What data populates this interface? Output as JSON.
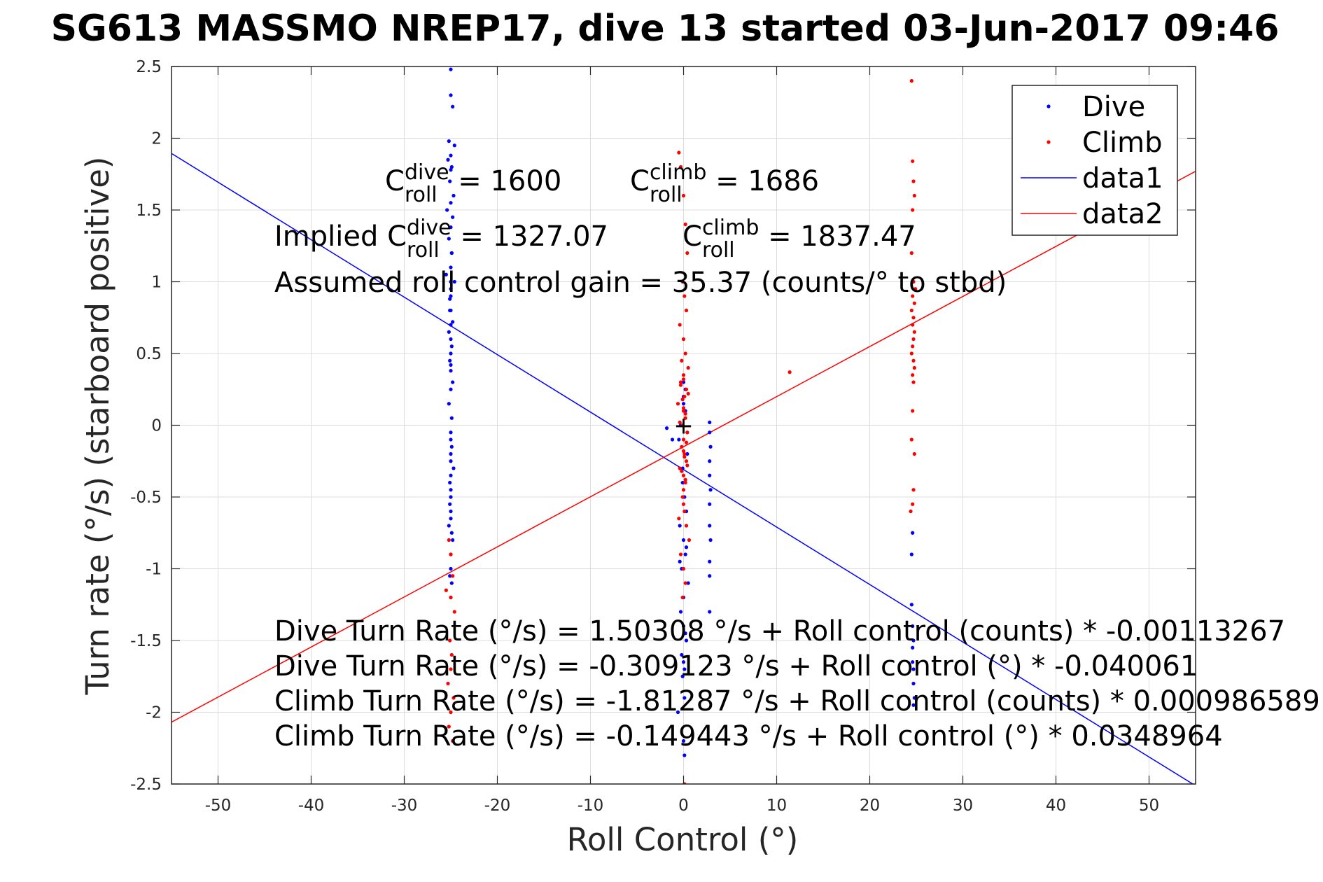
{
  "chart_data": {
    "type": "scatter",
    "title": "SG613 MASSMO NREP17, dive 13 started 03-Jun-2017 09:46",
    "xlabel": "Roll Control (°)",
    "ylabel": "Turn rate (°/s) (starboard positive)",
    "xlim": [
      -55,
      55
    ],
    "ylim": [
      -2.5,
      2.5
    ],
    "xticks": [
      -50,
      -40,
      -30,
      -20,
      -10,
      0,
      10,
      20,
      30,
      40,
      50
    ],
    "yticks": [
      -2.5,
      -2,
      -1.5,
      -1,
      -0.5,
      0,
      0.5,
      1,
      1.5,
      2,
      2.5
    ],
    "grid": true,
    "legend_position": "top-right",
    "series": [
      {
        "name": "Dive",
        "kind": "points",
        "color": "#0000ff",
        "x": [
          -25,
          -25,
          -24.8,
          -25.2,
          -24.6,
          -25,
          -25.3,
          -24.9,
          -25,
          -25.1,
          -24.7,
          -25,
          -25.4,
          -24.8,
          -25,
          -25.2,
          -24.9,
          -25,
          -25.5,
          -24.6,
          -25,
          -25.1,
          -25,
          -24.8,
          -25.2,
          -25,
          -24.9,
          -25,
          -25.1,
          -25,
          -24.8,
          -25,
          -25.2,
          -24.9,
          -25,
          -25,
          -24.7,
          -25.1,
          -25,
          -25,
          -25.2,
          -24.8,
          -25,
          -25,
          -25.1,
          -24.9,
          -25,
          -25,
          -24.9,
          -25,
          -25.1,
          -25,
          -25,
          -24.9,
          -25,
          -25,
          -25,
          -25.1,
          -25,
          -24.9,
          -25,
          -0.5,
          -0.3,
          0,
          0.2,
          0.4,
          -0.1,
          0.1,
          0.3,
          -0.4,
          0,
          0.2,
          -0.2,
          0.5,
          0,
          -0.3,
          0.3,
          0.1,
          -0.6,
          0,
          0.2,
          -0.1,
          0.4,
          0,
          -0.2,
          0.1,
          0.3,
          -0.4,
          0,
          0.2,
          0,
          -0.1,
          0,
          0.1,
          -1.8,
          -1.2,
          2.8,
          2.8,
          2.9,
          2.8,
          2.8,
          2.9,
          2.8,
          2.8,
          2.9,
          2.8,
          2.8,
          2.8,
          24.5,
          24.6,
          24.6,
          24.7,
          24.7,
          24.8,
          24.7,
          24.6,
          24.5,
          24.7,
          24.6
        ],
        "y": [
          2.48,
          2.3,
          2.22,
          1.98,
          1.95,
          1.88,
          1.85,
          1.8,
          1.78,
          1.7,
          1.6,
          1.55,
          1.5,
          1.45,
          1.38,
          1.3,
          1.2,
          1.1,
          1.05,
          1.0,
          0.95,
          0.88,
          0.8,
          0.72,
          0.65,
          0.6,
          0.55,
          0.5,
          0.45,
          0.38,
          0.3,
          0.25,
          0.15,
          0.05,
          -0.05,
          -0.2,
          -0.3,
          -0.4,
          -0.5,
          -0.6,
          -0.7,
          -0.8,
          -0.9,
          -1.0,
          -1.05,
          -1.1,
          -1.2,
          -0.1,
          -0.15,
          0.7,
          0.8,
          0.9,
          1.0,
          1.2,
          -0.25,
          -0.35,
          -0.45,
          -0.55,
          -0.65,
          -0.75,
          0.42,
          -0.1,
          0.0,
          0.2,
          0.1,
          -0.2,
          -0.4,
          -0.5,
          -0.6,
          -0.7,
          -0.8,
          -0.9,
          -1.0,
          -1.1,
          -1.2,
          -1.3,
          -1.5,
          -1.7,
          -2.0,
          0.3,
          0.25,
          -0.3,
          -0.05,
          0.15,
          -1.6,
          -1.9,
          -0.85,
          -0.95,
          -1.4,
          -1.45,
          -1.65,
          -1.75,
          -2.2,
          -2.3,
          -0.02,
          -0.1,
          0.02,
          -0.05,
          -0.15,
          -0.25,
          -0.35,
          -0.45,
          -0.55,
          -0.7,
          -0.8,
          -0.95,
          -1.05,
          -1.3,
          -1.25,
          -1.4,
          -1.55,
          -1.7,
          -1.8,
          -1.9,
          -1.95,
          -0.75,
          -0.9,
          -1.5,
          -1.65
        ]
      },
      {
        "name": "Climb",
        "kind": "points",
        "color": "#ff0000",
        "x": [
          -25.2,
          -25,
          -24.8,
          -25.5,
          -25,
          -24.6,
          -25.1,
          -24.9,
          -25,
          -25.3,
          -24.7,
          -25,
          -25.2,
          -24.8,
          -0.5,
          -0.3,
          0,
          0.2,
          0.4,
          -0.1,
          0.1,
          0.3,
          -0.4,
          0,
          0.2,
          -0.2,
          0.5,
          0,
          -0.3,
          0.3,
          0.1,
          -0.6,
          0,
          0.2,
          -0.1,
          0.4,
          0,
          -0.2,
          0.1,
          0.3,
          -0.4,
          0,
          0.2,
          0,
          -0.1,
          0,
          0.1,
          -0.5,
          0.3,
          0.6,
          -0.3,
          0,
          0.2,
          -0.1,
          0.4,
          -0.2,
          0.1,
          0,
          0.3,
          -0.4,
          0.2,
          0,
          -0.1,
          0.5,
          -0.3,
          0.1,
          0,
          0.2,
          11.4,
          24.5,
          24.6,
          24.7,
          24.8,
          24.6,
          24.5,
          24.7,
          24.9,
          24.6,
          24.8,
          24.5,
          24.7,
          24.6,
          24.8,
          24.7,
          24.6,
          24.5,
          24.7,
          24.8,
          24.6,
          24.7,
          24.6,
          24.5,
          24.8,
          24.7,
          24.6,
          24.4
        ],
        "y": [
          -0.8,
          -0.9,
          -1.05,
          -1.15,
          -1.2,
          -1.3,
          -1.5,
          -1.6,
          -1.7,
          -1.8,
          -1.9,
          -2.0,
          -2.1,
          -2.2,
          1.9,
          1.8,
          1.6,
          1.4,
          1.2,
          1.0,
          0.9,
          0.8,
          0.7,
          0.6,
          0.5,
          0.45,
          0.4,
          0.35,
          0.3,
          0.25,
          0.2,
          0.15,
          0.1,
          0.05,
          0.0,
          -0.05,
          -0.1,
          -0.15,
          -0.2,
          -0.25,
          -0.3,
          -0.35,
          -0.4,
          -0.45,
          -0.5,
          -0.55,
          -0.6,
          -0.65,
          -0.7,
          -0.8,
          -0.9,
          -1.0,
          -1.1,
          -1.2,
          -0.28,
          -0.32,
          -0.22,
          -0.18,
          -0.12,
          0.02,
          0.08,
          0.12,
          0.18,
          0.22,
          0.28,
          -2.5,
          0.32,
          -0.38,
          0.37,
          2.4,
          1.84,
          1.7,
          1.6,
          1.5,
          1.2,
          1.0,
          0.95,
          0.9,
          0.85,
          0.8,
          0.75,
          0.7,
          0.65,
          0.6,
          0.55,
          0.5,
          0.45,
          0.4,
          0.35,
          0.3,
          0.1,
          -0.1,
          -0.2,
          -0.45,
          -0.55,
          -0.6
        ]
      },
      {
        "name": "data1",
        "kind": "line",
        "color": "#0000ff",
        "x": [
          -55,
          55
        ],
        "y": [
          1.894,
          -2.512
        ]
      },
      {
        "name": "data2",
        "kind": "line",
        "color": "#ff0000",
        "x": [
          -55,
          55
        ],
        "y": [
          -2.069,
          1.77
        ]
      }
    ],
    "center_marker": {
      "x": 0,
      "y": 0,
      "symbol": "+"
    },
    "annotations": {
      "c_roll_dive": {
        "base": "C",
        "sup": "dive",
        "sub": "roll",
        "rest": " = 1600"
      },
      "c_roll_climb": {
        "base": "C",
        "sup": "climb",
        "sub": "roll",
        "rest": " = 1686"
      },
      "implied_dive": {
        "prefix": "Implied C",
        "sup": "dive",
        "sub": "roll",
        "rest": " = 1327.07"
      },
      "implied_climb": {
        "base": "C",
        "sup": "climb",
        "sub": "roll",
        "rest": " = 1837.47"
      },
      "gain": "Assumed roll control gain = 35.37 (counts/° to stbd)",
      "fits": [
        "Dive Turn Rate (°/s) = 1.50308 °/s + Roll control (counts) * -0.00113267",
        "Dive Turn Rate (°/s) = -0.309123 °/s + Roll control (°) * -0.040061",
        "Climb Turn Rate (°/s) = -1.81287 °/s + Roll control (counts) * 0.000986589",
        "Climb Turn Rate (°/s) = -0.149443 °/s + Roll control (°) * 0.0348964"
      ]
    }
  }
}
